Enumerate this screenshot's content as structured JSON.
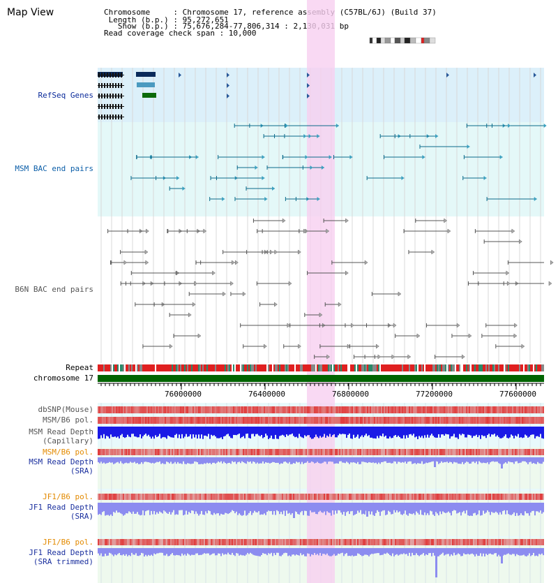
{
  "page": {
    "title": "Map View"
  },
  "header": {
    "chromosome_line": "Chromosome     : Chromosome 17, reference assembly (C57BL/6J) (Build 37)",
    "length_line": " Length (b.p.) : 95,272,651",
    "show_line": "   Show (b.p.) : 75,676,284-77,806,314 : 2,130,031 bp",
    "coverage_line": "Read coverage check span : 10,000"
  },
  "tracks": {
    "refseq": "RefSeq Genes",
    "msm_bac": "MSM BAC end pairs",
    "b6n_bac": "B6N BAC end pairs",
    "repeat": "Repeat",
    "chromosome": "chromosome 17",
    "dbsnp": "dbSNP(Mouse)",
    "msm_b6_pol_1": "MSM/B6 pol.",
    "msm_depth_cap_1": "MSM Read Depth",
    "msm_depth_cap_2": "(Capillary)",
    "msm_b6_pol_2": "MSM/B6 pol.",
    "msm_depth_sra_1": "MSM Read Depth",
    "msm_depth_sra_2": "(SRA)",
    "jf1_b6_pol_1": "JF1/B6 pol.",
    "jf1_depth_sra_1": "JF1 Read Depth",
    "jf1_depth_sra_2": "(SRA)",
    "jf1_b6_pol_2": "JF1/B6 pol.",
    "jf1_depth_trim_1": "JF1 Read Depth",
    "jf1_depth_trim_2": "(SRA trimmed)"
  },
  "axis": {
    "ticks": [
      "76000000",
      "76400000",
      "76800000",
      "77200000",
      "77600000"
    ]
  },
  "colors": {
    "highlight": "#f7d0f0",
    "refseq_bg": "#dcf0fa",
    "msm_bg": "#e4f8f8",
    "b6n_bg": "#ffffff",
    "depth_bg": "#eef9ee",
    "chromosome_bar": "#006400",
    "depth_dark": "#1a1ae6",
    "depth_light": "#8c8cf0"
  }
}
